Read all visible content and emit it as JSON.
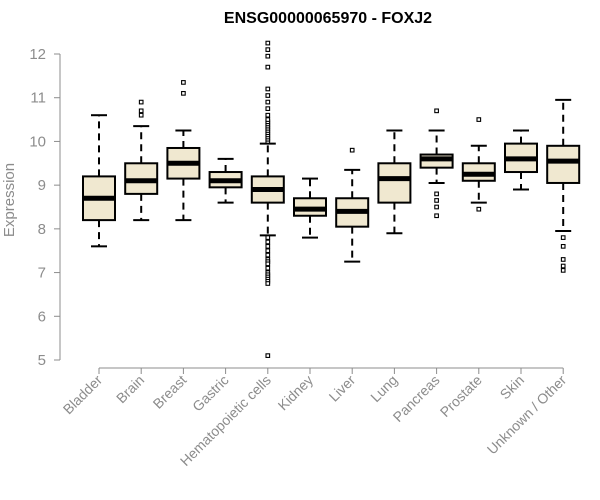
{
  "chart_data": {
    "type": "box",
    "title": "ENSG00000065970 - FOXJ2",
    "ylabel": "Expression",
    "xlabel": "",
    "ylim": [
      5,
      12
    ],
    "yticks": [
      5,
      6,
      7,
      8,
      9,
      10,
      11,
      12
    ],
    "grid": false,
    "box_fill": "#f0e8d0",
    "box_stroke": "#000000",
    "axis_color": "#8c8c8c",
    "categories": [
      "Bladder",
      "Brain",
      "Breast",
      "Gastric",
      "Hematopoietic cells",
      "Kidney",
      "Liver",
      "Lung",
      "Pancreas",
      "Prostate",
      "Skin",
      "Unknown / Other"
    ],
    "boxes": [
      {
        "category": "Bladder",
        "whisker_low": 7.6,
        "q1": 8.2,
        "median": 8.7,
        "q3": 9.2,
        "whisker_high": 10.6,
        "outliers": []
      },
      {
        "category": "Brain",
        "whisker_low": 8.2,
        "q1": 8.8,
        "median": 9.1,
        "q3": 9.5,
        "whisker_high": 10.35,
        "outliers": [
          10.6,
          10.7,
          10.9
        ]
      },
      {
        "category": "Breast",
        "whisker_low": 8.2,
        "q1": 9.15,
        "median": 9.5,
        "q3": 9.85,
        "whisker_high": 10.25,
        "outliers": [
          11.1,
          11.35
        ]
      },
      {
        "category": "Gastric",
        "whisker_low": 8.6,
        "q1": 8.95,
        "median": 9.1,
        "q3": 9.3,
        "whisker_high": 9.6,
        "outliers": []
      },
      {
        "category": "Hematopoietic cells",
        "whisker_low": 7.85,
        "q1": 8.6,
        "median": 8.9,
        "q3": 9.2,
        "whisker_high": 9.95,
        "outliers": [
          10.0,
          10.05,
          10.1,
          10.15,
          10.2,
          10.25,
          10.3,
          10.35,
          10.4,
          10.45,
          10.5,
          10.6,
          10.75,
          10.9,
          11.05,
          11.2,
          11.7,
          11.95,
          12.1,
          12.25,
          7.8,
          7.7,
          7.6,
          7.5,
          7.4,
          7.3,
          7.25,
          7.2,
          7.1,
          7.0,
          6.95,
          6.9,
          6.85,
          6.8,
          6.75,
          5.1
        ]
      },
      {
        "category": "Kidney",
        "whisker_low": 7.8,
        "q1": 8.3,
        "median": 8.45,
        "q3": 8.7,
        "whisker_high": 9.15,
        "outliers": []
      },
      {
        "category": "Liver",
        "whisker_low": 7.25,
        "q1": 8.05,
        "median": 8.4,
        "q3": 8.7,
        "whisker_high": 9.35,
        "outliers": [
          9.8
        ]
      },
      {
        "category": "Lung",
        "whisker_low": 7.9,
        "q1": 8.6,
        "median": 9.15,
        "q3": 9.5,
        "whisker_high": 10.25,
        "outliers": []
      },
      {
        "category": "Pancreas",
        "whisker_low": 9.05,
        "q1": 9.4,
        "median": 9.6,
        "q3": 9.7,
        "whisker_high": 10.25,
        "outliers": [
          10.7,
          8.8,
          8.65,
          8.5,
          8.3
        ]
      },
      {
        "category": "Prostate",
        "whisker_low": 8.6,
        "q1": 9.1,
        "median": 9.25,
        "q3": 9.5,
        "whisker_high": 9.9,
        "outliers": [
          10.5,
          8.45
        ]
      },
      {
        "category": "Skin",
        "whisker_low": 8.9,
        "q1": 9.3,
        "median": 9.6,
        "q3": 9.95,
        "whisker_high": 10.25,
        "outliers": []
      },
      {
        "category": "Unknown / Other",
        "whisker_low": 7.95,
        "q1": 9.05,
        "median": 9.55,
        "q3": 9.9,
        "whisker_high": 10.95,
        "outliers": [
          7.8,
          7.6,
          7.3,
          7.15,
          7.05
        ]
      }
    ]
  }
}
